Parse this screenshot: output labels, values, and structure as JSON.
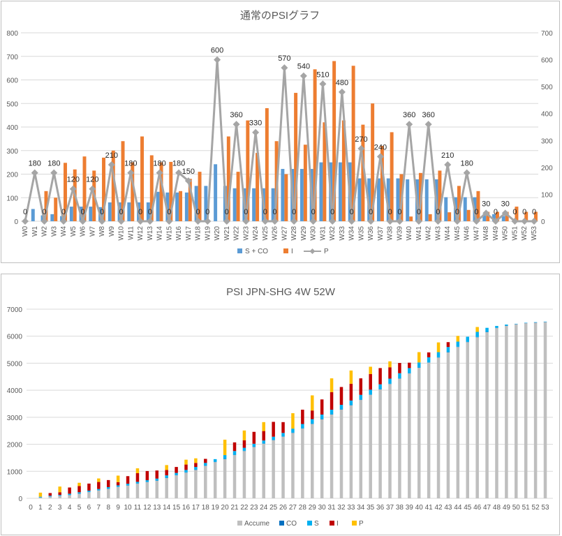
{
  "chart_data": [
    {
      "type": "bar+line",
      "title": "通常のPSIグラフ",
      "categories": [
        "W0",
        "W1",
        "W2",
        "W3",
        "W4",
        "W5",
        "W6",
        "W7",
        "W8",
        "W9",
        "W10",
        "W11",
        "W12",
        "W13",
        "W14",
        "W15",
        "W16",
        "W17",
        "W18",
        "W19",
        "W20",
        "W21",
        "W22",
        "W23",
        "W24",
        "W25",
        "W26",
        "W27",
        "W28",
        "W29",
        "W30",
        "W31",
        "W32",
        "W33",
        "W34",
        "W35",
        "W36",
        "W37",
        "W38",
        "W39",
        "W40",
        "W41",
        "W42",
        "W43",
        "W44",
        "W45",
        "W46",
        "W47",
        "W48",
        "W49",
        "W50",
        "W51",
        "W52",
        "W53"
      ],
      "ylim": [
        0,
        800
      ],
      "ylim_right": [
        0,
        700
      ],
      "yticks": [
        0,
        100,
        200,
        300,
        400,
        500,
        600,
        700,
        800
      ],
      "yticks_right": [
        0,
        100,
        200,
        300,
        400,
        500,
        600,
        700
      ],
      "legend_position": "bottom",
      "series": [
        {
          "name": "S + CO",
          "type": "bar",
          "axis": "left",
          "color": "#5b9bd5",
          "values": [
            0,
            52,
            25,
            30,
            22,
            62,
            62,
            62,
            60,
            80,
            80,
            80,
            80,
            80,
            125,
            122,
            122,
            122,
            150,
            150,
            242,
            150,
            140,
            140,
            140,
            140,
            140,
            222,
            222,
            222,
            222,
            250,
            250,
            250,
            250,
            182,
            182,
            182,
            182,
            182,
            178,
            178,
            178,
            178,
            102,
            102,
            102,
            102,
            30,
            30,
            22,
            0,
            0,
            0
          ]
        },
        {
          "name": "I",
          "type": "bar",
          "axis": "left",
          "color": "#ed7d31",
          "values": [
            0,
            0,
            128,
            100,
            248,
            220,
            275,
            215,
            270,
            300,
            340,
            250,
            360,
            280,
            250,
            252,
            128,
            180,
            210,
            0,
            0,
            360,
            210,
            428,
            290,
            480,
            340,
            200,
            545,
            325,
            645,
            420,
            680,
            428,
            660,
            410,
            500,
            320,
            378,
            200,
            20,
            205,
            30,
            215,
            38,
            150,
            48,
            128,
            40,
            40,
            40,
            62,
            40,
            40
          ]
        },
        {
          "name": "P",
          "type": "line",
          "axis": "right",
          "color": "#a5a5a5",
          "values": [
            0,
            180,
            0,
            180,
            0,
            120,
            0,
            120,
            0,
            210,
            0,
            180,
            0,
            0,
            180,
            0,
            180,
            150,
            0,
            0,
            600,
            0,
            360,
            0,
            330,
            0,
            0,
            570,
            0,
            540,
            0,
            510,
            0,
            480,
            0,
            270,
            0,
            240,
            0,
            0,
            360,
            0,
            360,
            0,
            210,
            0,
            180,
            0,
            30,
            0,
            30,
            0,
            0,
            0
          ],
          "data_labels": [
            "0",
            "180",
            "0",
            "180",
            "0",
            "120",
            "0",
            "120",
            "0",
            "210",
            "0",
            "180",
            "0",
            "0",
            "180",
            "0",
            "180",
            "150",
            "0",
            "0",
            "600",
            "0",
            "360",
            "0",
            "330",
            "0",
            "0",
            "570",
            "0",
            "540",
            "0",
            "510",
            "0",
            "480",
            "0",
            "270",
            "0",
            "240",
            "0",
            "0",
            "360",
            "0",
            "360",
            "0",
            "210",
            "0",
            "180",
            "0",
            "30",
            "0",
            "30",
            "0",
            "0",
            "0"
          ]
        }
      ]
    },
    {
      "type": "stacked-bar",
      "title": "PSI JPN-SHG 4W 52W",
      "categories": [
        "0",
        "1",
        "2",
        "3",
        "4",
        "5",
        "6",
        "7",
        "8",
        "9",
        "10",
        "11",
        "12",
        "13",
        "14",
        "15",
        "16",
        "17",
        "18",
        "19",
        "20",
        "21",
        "22",
        "23",
        "24",
        "25",
        "26",
        "27",
        "28",
        "29",
        "30",
        "31",
        "32",
        "33",
        "34",
        "35",
        "36",
        "37",
        "38",
        "39",
        "40",
        "41",
        "42",
        "43",
        "44",
        "45",
        "46",
        "47",
        "48",
        "49",
        "50",
        "51",
        "52",
        "53"
      ],
      "ylim": [
        0,
        7000
      ],
      "yticks": [
        0,
        1000,
        2000,
        3000,
        4000,
        5000,
        6000,
        7000
      ],
      "legend_position": "bottom",
      "series": [
        {
          "name": "Accume",
          "color": "#bfbfbf",
          "values": [
            0,
            30,
            60,
            90,
            120,
            170,
            230,
            290,
            350,
            420,
            470,
            540,
            600,
            650,
            750,
            850,
            950,
            1050,
            1200,
            1340,
            1450,
            1600,
            1750,
            1900,
            2020,
            2150,
            2280,
            2420,
            2580,
            2750,
            2920,
            3100,
            3280,
            3440,
            3640,
            3830,
            4030,
            4230,
            4430,
            4620,
            4830,
            5020,
            5210,
            5400,
            5600,
            5780,
            5960,
            6150,
            6300,
            6380,
            6440,
            6480,
            6500,
            6520
          ]
        },
        {
          "name": "CO",
          "color": "#0070c0",
          "values": [
            0,
            10,
            10,
            10,
            10,
            10,
            10,
            10,
            10,
            10,
            10,
            10,
            10,
            10,
            10,
            10,
            10,
            10,
            10,
            10,
            10,
            10,
            10,
            10,
            10,
            10,
            10,
            10,
            10,
            10,
            10,
            10,
            10,
            10,
            10,
            10,
            10,
            10,
            10,
            10,
            10,
            10,
            10,
            10,
            10,
            10,
            10,
            10,
            10,
            10,
            10,
            10,
            10,
            10
          ]
        },
        {
          "name": "S",
          "color": "#00b0f0",
          "values": [
            0,
            20,
            25,
            25,
            40,
            45,
            45,
            45,
            55,
            50,
            60,
            60,
            60,
            70,
            90,
            80,
            90,
            100,
            100,
            100,
            140,
            140,
            110,
            110,
            110,
            120,
            130,
            150,
            160,
            170,
            170,
            170,
            170,
            170,
            180,
            180,
            180,
            190,
            190,
            190,
            190,
            190,
            190,
            190,
            190,
            190,
            190,
            150,
            70,
            40,
            10,
            10,
            10,
            10
          ]
        },
        {
          "name": "I",
          "color": "#c00000",
          "values": [
            0,
            0,
            100,
            100,
            230,
            230,
            260,
            260,
            260,
            120,
            280,
            320,
            340,
            300,
            200,
            220,
            200,
            150,
            150,
            0,
            0,
            320,
            280,
            440,
            350,
            550,
            400,
            0,
            530,
            320,
            560,
            650,
            660,
            620,
            610,
            580,
            600,
            420,
            380,
            200,
            0,
            180,
            0,
            180,
            0,
            0,
            0,
            0,
            0,
            0,
            0,
            0,
            0,
            0
          ]
        },
        {
          "name": "P",
          "color": "#ffc000",
          "values": [
            0,
            150,
            0,
            210,
            0,
            120,
            0,
            130,
            0,
            240,
            0,
            180,
            0,
            0,
            180,
            0,
            180,
            170,
            0,
            0,
            570,
            0,
            360,
            0,
            330,
            0,
            0,
            570,
            0,
            560,
            0,
            510,
            0,
            490,
            0,
            270,
            0,
            220,
            0,
            0,
            380,
            0,
            360,
            0,
            210,
            0,
            180,
            0,
            0,
            0,
            0,
            0,
            0,
            0
          ]
        }
      ]
    }
  ]
}
